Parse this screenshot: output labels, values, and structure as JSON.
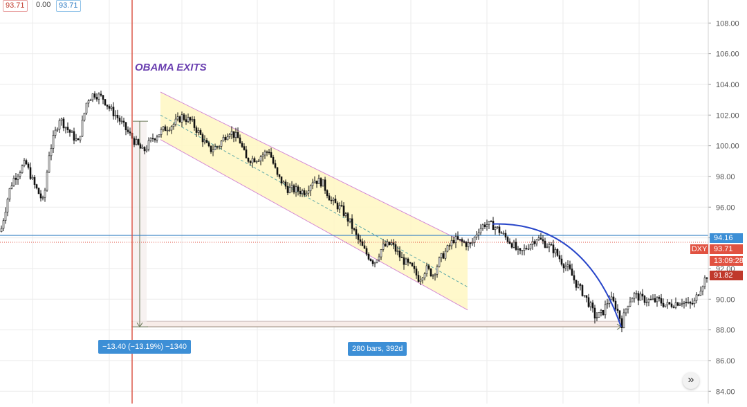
{
  "ohlc_header": {
    "open": "93.71",
    "change": "0.00",
    "close": "93.71"
  },
  "colors": {
    "candles": "#111111",
    "obama_line": "#d94b3b",
    "obama_text": "#6a3fb0",
    "channel_fill": "#fff7c2",
    "channel_border": "#d489d4",
    "channel_mid": "#5aa7a7",
    "arc": "#2745c9",
    "hline": "#3a83c4",
    "dotted_line": "#e15241",
    "measure_fill": "#f7ece8",
    "tag_red": "#e15241",
    "tag_dark_red": "#c0392b",
    "tag_blue": "#3d8fd6",
    "grid": "#ebebeb",
    "axis_text": "#555555"
  },
  "annotations": {
    "obama_text": "OBAMA EXITS",
    "price_range_label": "−13.40 (−13.19%) −1340",
    "date_range_label": "280 bars, 392d",
    "horizontal_line_value": "94.16",
    "dxy_symbol": "DXY",
    "last_price": "93.71",
    "countdown": "13:09:28",
    "current_price": "91.82",
    "scroll_icon": "double-chevron-right-icon"
  },
  "chart_data": {
    "type": "candlestick",
    "symbol": "DXY",
    "ylim": [
      83.2,
      109.5
    ],
    "y_ticks": [
      "108.00",
      "106.00",
      "104.00",
      "102.00",
      "100.00",
      "98.00",
      "96.00",
      "94.00",
      "92.00",
      "90.00",
      "88.00",
      "86.00",
      "84.00"
    ],
    "price_path_keypoints": [
      [
        0,
        94.4
      ],
      [
        12,
        97.0
      ],
      [
        18,
        97.8
      ],
      [
        36,
        98.9
      ],
      [
        48,
        97.5
      ],
      [
        62,
        96.3
      ],
      [
        70,
        99.5
      ],
      [
        85,
        101.8
      ],
      [
        98,
        101.0
      ],
      [
        112,
        100.2
      ],
      [
        125,
        103.0
      ],
      [
        135,
        103.4
      ],
      [
        148,
        103.1
      ],
      [
        158,
        102.4
      ],
      [
        168,
        101.9
      ],
      [
        182,
        101.0
      ],
      [
        195,
        100.2
      ],
      [
        206,
        99.6
      ],
      [
        220,
        100.5
      ],
      [
        240,
        101.2
      ],
      [
        250,
        101.4
      ],
      [
        262,
        101.9
      ],
      [
        275,
        101.6
      ],
      [
        290,
        100.6
      ],
      [
        302,
        99.7
      ],
      [
        315,
        100.0
      ],
      [
        330,
        101.0
      ],
      [
        345,
        100.4
      ],
      [
        355,
        99.1
      ],
      [
        372,
        99.2
      ],
      [
        388,
        99.7
      ],
      [
        400,
        98.0
      ],
      [
        415,
        97.2
      ],
      [
        428,
        97.1
      ],
      [
        440,
        97.0
      ],
      [
        452,
        97.8
      ],
      [
        465,
        97.6
      ],
      [
        478,
        96.4
      ],
      [
        492,
        95.9
      ],
      [
        505,
        95.0
      ],
      [
        515,
        94.0
      ],
      [
        528,
        93.0
      ],
      [
        540,
        92.4
      ],
      [
        552,
        93.4
      ],
      [
        565,
        93.6
      ],
      [
        580,
        92.6
      ],
      [
        595,
        92.0
      ],
      [
        605,
        91.3
      ],
      [
        615,
        92.0
      ],
      [
        625,
        91.6
      ],
      [
        635,
        92.6
      ],
      [
        645,
        93.2
      ],
      [
        655,
        93.9
      ],
      [
        668,
        93.7
      ],
      [
        680,
        93.5
      ],
      [
        690,
        94.5
      ],
      [
        700,
        94.9
      ],
      [
        712,
        94.8
      ],
      [
        720,
        94.5
      ],
      [
        728,
        94.1
      ],
      [
        740,
        93.6
      ],
      [
        750,
        92.9
      ],
      [
        765,
        93.6
      ],
      [
        775,
        94.0
      ],
      [
        788,
        93.6
      ],
      [
        800,
        93.2
      ],
      [
        812,
        92.4
      ],
      [
        822,
        91.9
      ],
      [
        832,
        91.0
      ],
      [
        842,
        90.4
      ],
      [
        852,
        89.6
      ],
      [
        860,
        88.8
      ],
      [
        870,
        89.1
      ],
      [
        880,
        90.1
      ],
      [
        890,
        89.5
      ],
      [
        898,
        88.4
      ],
      [
        906,
        89.7
      ],
      [
        915,
        90.3
      ],
      [
        928,
        90.0
      ],
      [
        940,
        89.9
      ],
      [
        952,
        89.9
      ],
      [
        962,
        89.6
      ],
      [
        972,
        89.7
      ],
      [
        985,
        89.9
      ],
      [
        995,
        89.6
      ],
      [
        1003,
        89.8
      ],
      [
        1010,
        90.6
      ],
      [
        1018,
        91.3
      ],
      [
        1024,
        91.8
      ]
    ],
    "obama_exit_marker": {
      "label": "OBAMA EXITS"
    },
    "price_range_measure": {
      "from": 101.6,
      "to": 88.2,
      "label": "−13.40 (−13.19%) −1340"
    },
    "date_range_measure": {
      "price": 88.2,
      "label": "280 bars, 392d"
    },
    "horizontal_level": 94.16,
    "last_price": 93.71,
    "current_price": 91.82,
    "regression_channel": {
      "upper_start": 103.5,
      "upper_end": 93.6,
      "lower_start": 100.4,
      "lower_end": 89.3,
      "mid_start": 102.0,
      "mid_end": 90.8
    },
    "curve_arc": {
      "start": 94.9,
      "end": 88.2
    }
  }
}
